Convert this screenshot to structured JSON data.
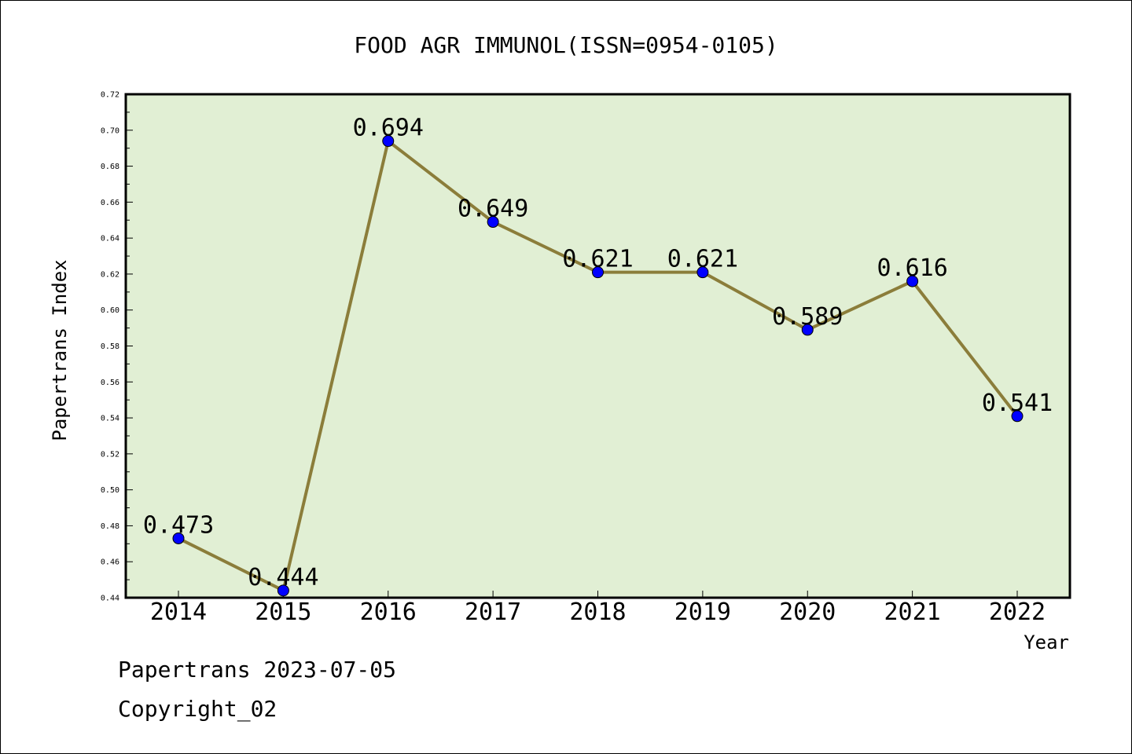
{
  "chart_data": {
    "type": "line",
    "title": "FOOD AGR IMMUNOL(ISSN=0954-0105)",
    "xlabel": "Year",
    "ylabel": "Papertrans Index",
    "categories": [
      "2014",
      "2015",
      "2016",
      "2017",
      "2018",
      "2019",
      "2020",
      "2021",
      "2022"
    ],
    "series": [
      {
        "values": [
          0.473,
          0.444,
          0.694,
          0.649,
          0.621,
          0.621,
          0.589,
          0.616,
          0.541
        ],
        "labels": [
          "0.473",
          "0.444",
          "0.694",
          "0.649",
          "0.621",
          "0.621",
          "0.589",
          "0.616",
          "0.541"
        ]
      }
    ],
    "ylim": [
      0.44,
      0.72
    ],
    "yticks": [
      "0.44",
      "0.46",
      "0.48",
      "0.50",
      "0.52",
      "0.54",
      "0.56",
      "0.58",
      "0.60",
      "0.62",
      "0.64",
      "0.66",
      "0.68",
      "0.70",
      "0.72"
    ],
    "grid": false,
    "colors": {
      "plot_background": "#e1efd4",
      "line": "#8b7d3a",
      "marker": "#0000ff"
    }
  },
  "footer": {
    "date_line": "Papertrans 2023-07-05",
    "copyright": "Copyright_02"
  }
}
